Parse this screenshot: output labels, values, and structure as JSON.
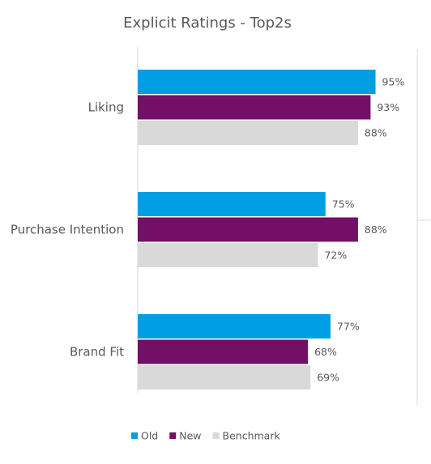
{
  "chart_data": {
    "type": "bar",
    "orientation": "horizontal",
    "title": "Explicit Ratings - Top2s",
    "categories": [
      "Liking",
      "Purchase Intention",
      "Brand Fit"
    ],
    "series": [
      {
        "name": "Old",
        "values": [
          95,
          75,
          77
        ],
        "color": "#009fe3"
      },
      {
        "name": "New",
        "values": [
          93,
          88,
          68
        ],
        "color": "#730f66"
      },
      {
        "name": "Benchmark",
        "values": [
          88,
          72,
          69
        ],
        "color": "#d9d9d9"
      }
    ],
    "value_suffix": "%",
    "xlim": [
      0,
      100
    ],
    "grid": false,
    "legend_position": "bottom"
  }
}
